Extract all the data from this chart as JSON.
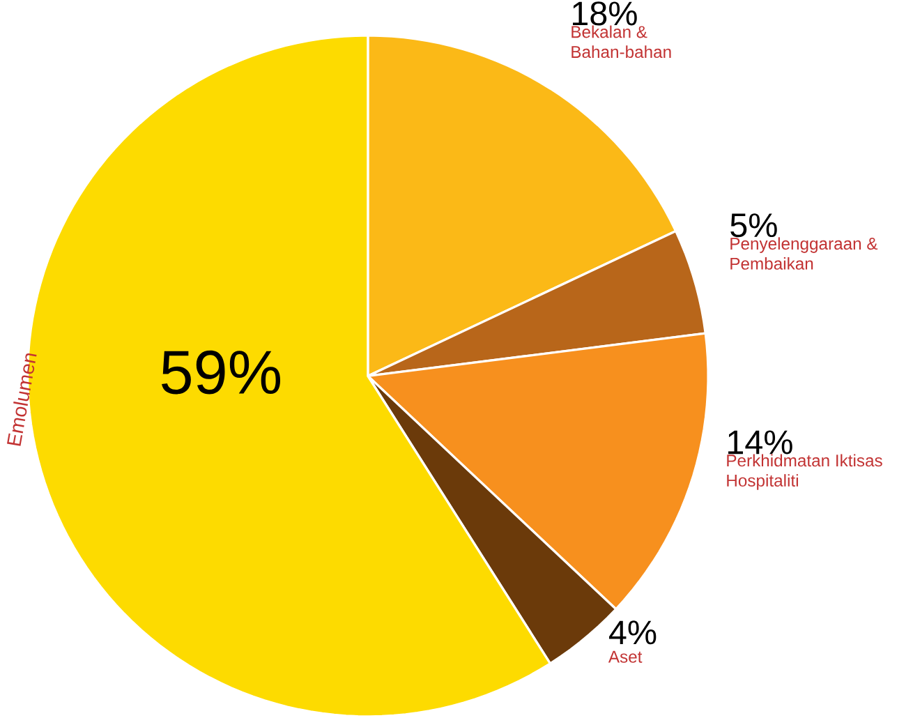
{
  "chart_data": {
    "type": "pie",
    "categories": [
      "Bekalan & Bahan-bahan",
      "Penyelenggaraan & Pembaikan",
      "Perkhidmatan Iktisas Hospitaliti",
      "Aset",
      "Emolumen"
    ],
    "values": [
      18,
      5,
      14,
      4,
      59
    ],
    "value_labels": [
      "18%",
      "5%",
      "14%",
      "4%",
      "59%"
    ],
    "colors": [
      "#fbb917",
      "#b8661a",
      "#f7901e",
      "#6b3a0a",
      "#fddb00"
    ]
  }
}
